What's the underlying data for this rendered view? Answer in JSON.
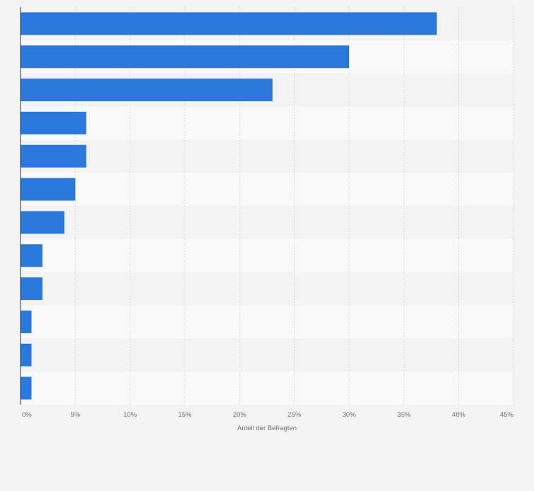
{
  "chart_data": {
    "type": "bar",
    "orientation": "horizontal",
    "categories": [
      "",
      "",
      "",
      "",
      "",
      "",
      "",
      "",
      "",
      "",
      "",
      ""
    ],
    "values": [
      38,
      30,
      23,
      6,
      6,
      5,
      4,
      2,
      2,
      1,
      1,
      1
    ],
    "xlabel": "Anteil der Befragten",
    "ylabel": "",
    "xlim": [
      0,
      45
    ],
    "x_ticks": [
      0,
      5,
      10,
      15,
      20,
      25,
      30,
      35,
      40,
      45
    ],
    "x_tick_labels": [
      "0%",
      "5%",
      "10%",
      "15%",
      "20%",
      "25%",
      "30%",
      "35%",
      "40%",
      "45%"
    ],
    "grid": true,
    "bar_color": "#2a78dd",
    "band_colors": [
      "#f3f3f3",
      "#f9f9f9"
    ]
  }
}
